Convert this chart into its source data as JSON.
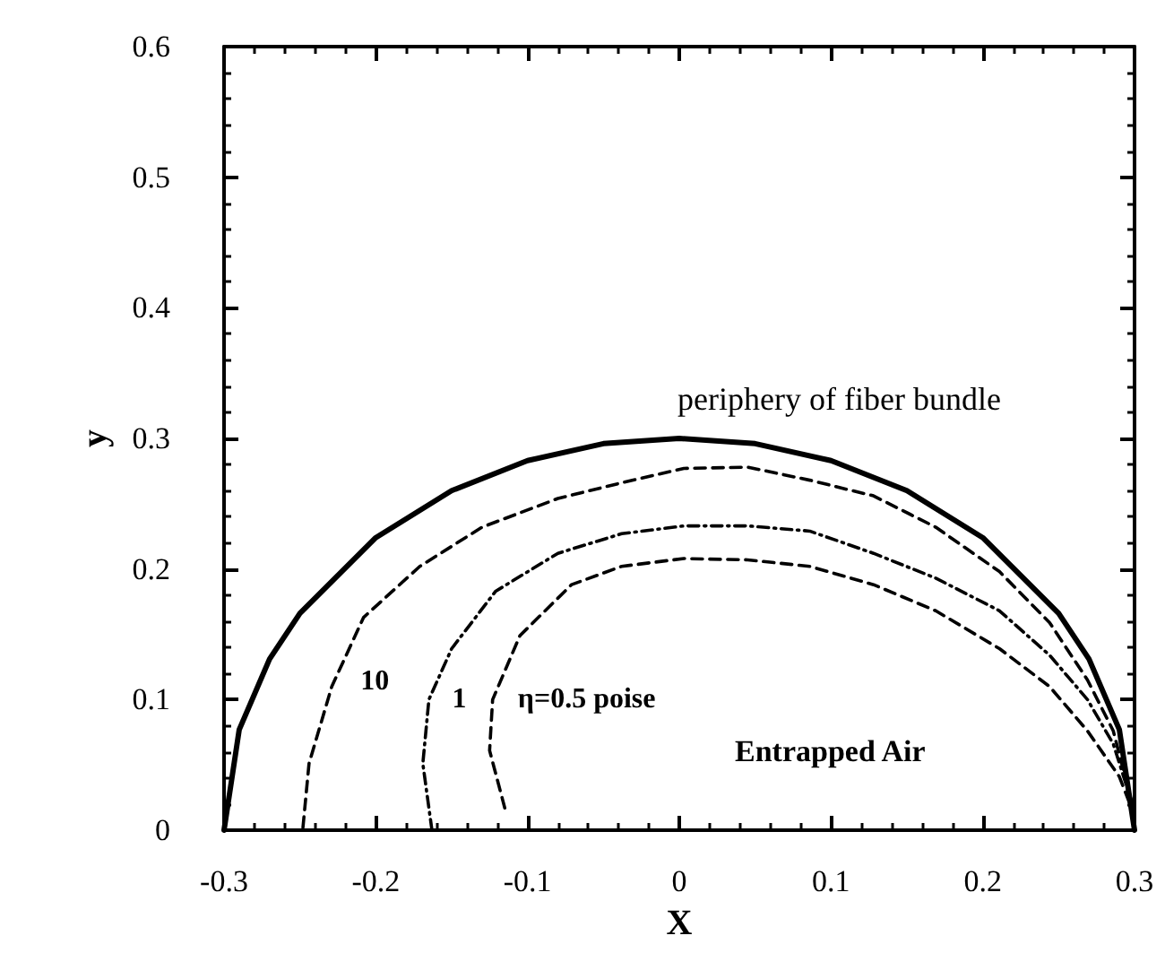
{
  "chart_data": {
    "type": "line",
    "xlabel": "X",
    "ylabel": "y",
    "xlim": [
      -0.3,
      0.3
    ],
    "xticks": [
      -0.3,
      -0.2,
      -0.1,
      0,
      0.1,
      0.2,
      0.3
    ],
    "ylim": [
      0,
      0.6
    ],
    "yticks": [
      0,
      0.1,
      0.2,
      0.3,
      0.4,
      0.5,
      0.6
    ],
    "grid": false,
    "legend": false,
    "marker": "none",
    "series": [
      {
        "name": "periphery of fiber bundle",
        "color": "#000000",
        "line_style": "solid",
        "x": [
          -0.3,
          -0.29,
          -0.27,
          -0.25,
          -0.2,
          -0.15,
          -0.1,
          -0.05,
          0,
          0.05,
          0.1,
          0.15,
          0.2,
          0.25,
          0.27,
          0.29,
          0.3
        ],
        "values": [
          0,
          0.077,
          0.131,
          0.166,
          0.224,
          0.26,
          0.283,
          0.296,
          0.3,
          0.296,
          0.283,
          0.26,
          0.224,
          0.166,
          0.131,
          0.077,
          0
        ]
      },
      {
        "name": "10",
        "color": "#000000",
        "line_style": "dashed",
        "x": [
          -0.248,
          -0.244,
          -0.229,
          -0.208,
          -0.171,
          -0.13,
          -0.08,
          -0.038,
          0.003,
          0.045,
          0.086,
          0.128,
          0.169,
          0.211,
          0.244,
          0.269,
          0.286,
          0.298
        ],
        "values": [
          0.002,
          0.051,
          0.11,
          0.163,
          0.202,
          0.232,
          0.254,
          0.266,
          0.277,
          0.278,
          0.268,
          0.256,
          0.232,
          0.198,
          0.159,
          0.115,
          0.076,
          0.022
        ]
      },
      {
        "name": "1",
        "color": "#000000",
        "line_style": "dashdot",
        "x": [
          -0.163,
          -0.169,
          -0.165,
          -0.15,
          -0.121,
          -0.08,
          -0.038,
          0.003,
          0.045,
          0.086,
          0.128,
          0.169,
          0.211,
          0.244,
          0.269,
          0.286,
          0.298
        ],
        "values": [
          0,
          0.051,
          0.1,
          0.139,
          0.183,
          0.212,
          0.227,
          0.233,
          0.233,
          0.229,
          0.212,
          0.193,
          0.168,
          0.134,
          0.1,
          0.066,
          0.022
        ]
      },
      {
        "name": "η=0.5 poise",
        "color": "#000000",
        "line_style": "dashed",
        "x": [
          -0.115,
          -0.125,
          -0.123,
          -0.105,
          -0.071,
          -0.038,
          0.003,
          0.045,
          0.086,
          0.128,
          0.169,
          0.211,
          0.244,
          0.269,
          0.29,
          0.298
        ],
        "values": [
          0.017,
          0.061,
          0.1,
          0.149,
          0.188,
          0.202,
          0.208,
          0.207,
          0.202,
          0.188,
          0.168,
          0.139,
          0.11,
          0.076,
          0.041,
          0.017
        ]
      }
    ],
    "annotations": [
      "Entrapped Air"
    ]
  }
}
